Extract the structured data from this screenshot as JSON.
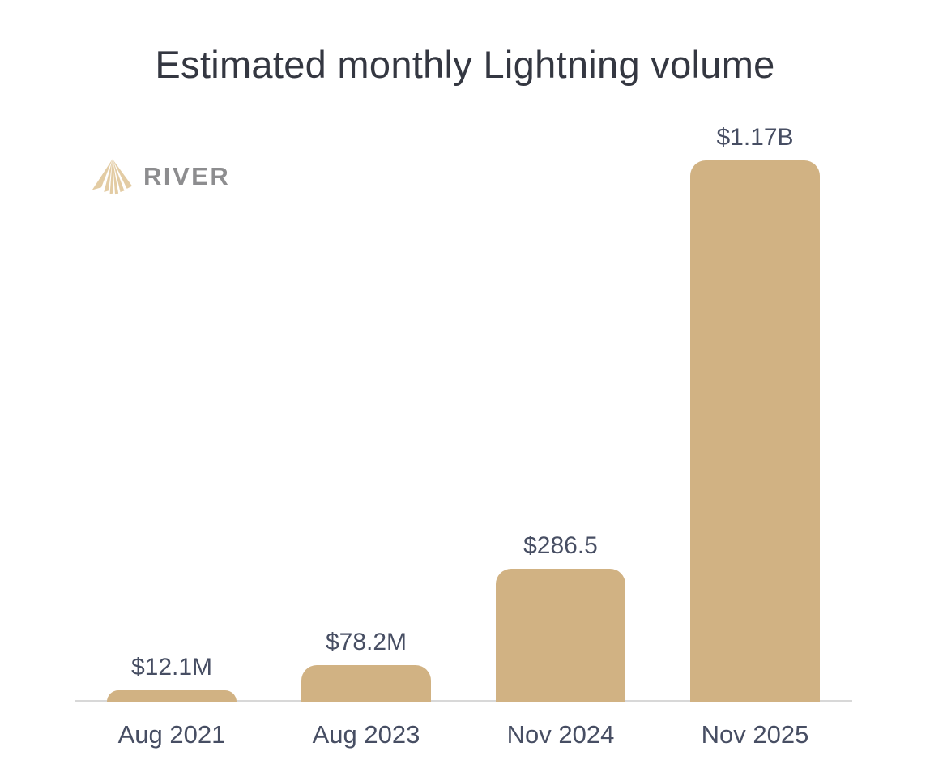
{
  "title": "Estimated monthly Lightning volume",
  "logo": {
    "brand": "RIVER",
    "icon": "river-rays-icon"
  },
  "colors": {
    "background": "#ffffff",
    "bar": "#d1b283",
    "title_text": "#343741",
    "label_text": "#474e63",
    "axis_line": "#d8d8d8",
    "logo_icon": "#e3cca4",
    "logo_text": "#8d8d8f"
  },
  "chart_data": {
    "type": "bar",
    "title": "Estimated monthly Lightning volume",
    "categories": [
      "Aug 2021",
      "Aug 2023",
      "Nov 2024",
      "Nov 2025"
    ],
    "values_usd_millions": [
      12.1,
      78.2,
      286.5,
      1170
    ],
    "value_labels": [
      "$12.1M",
      "$78.2M",
      "$286.5",
      "$1.17B"
    ],
    "xlabel": "",
    "ylabel": "",
    "ylim_usd_millions": [
      0,
      1250
    ],
    "grid": false,
    "legend": false,
    "bar_color": "#d1b283",
    "baseline_axis": true
  }
}
